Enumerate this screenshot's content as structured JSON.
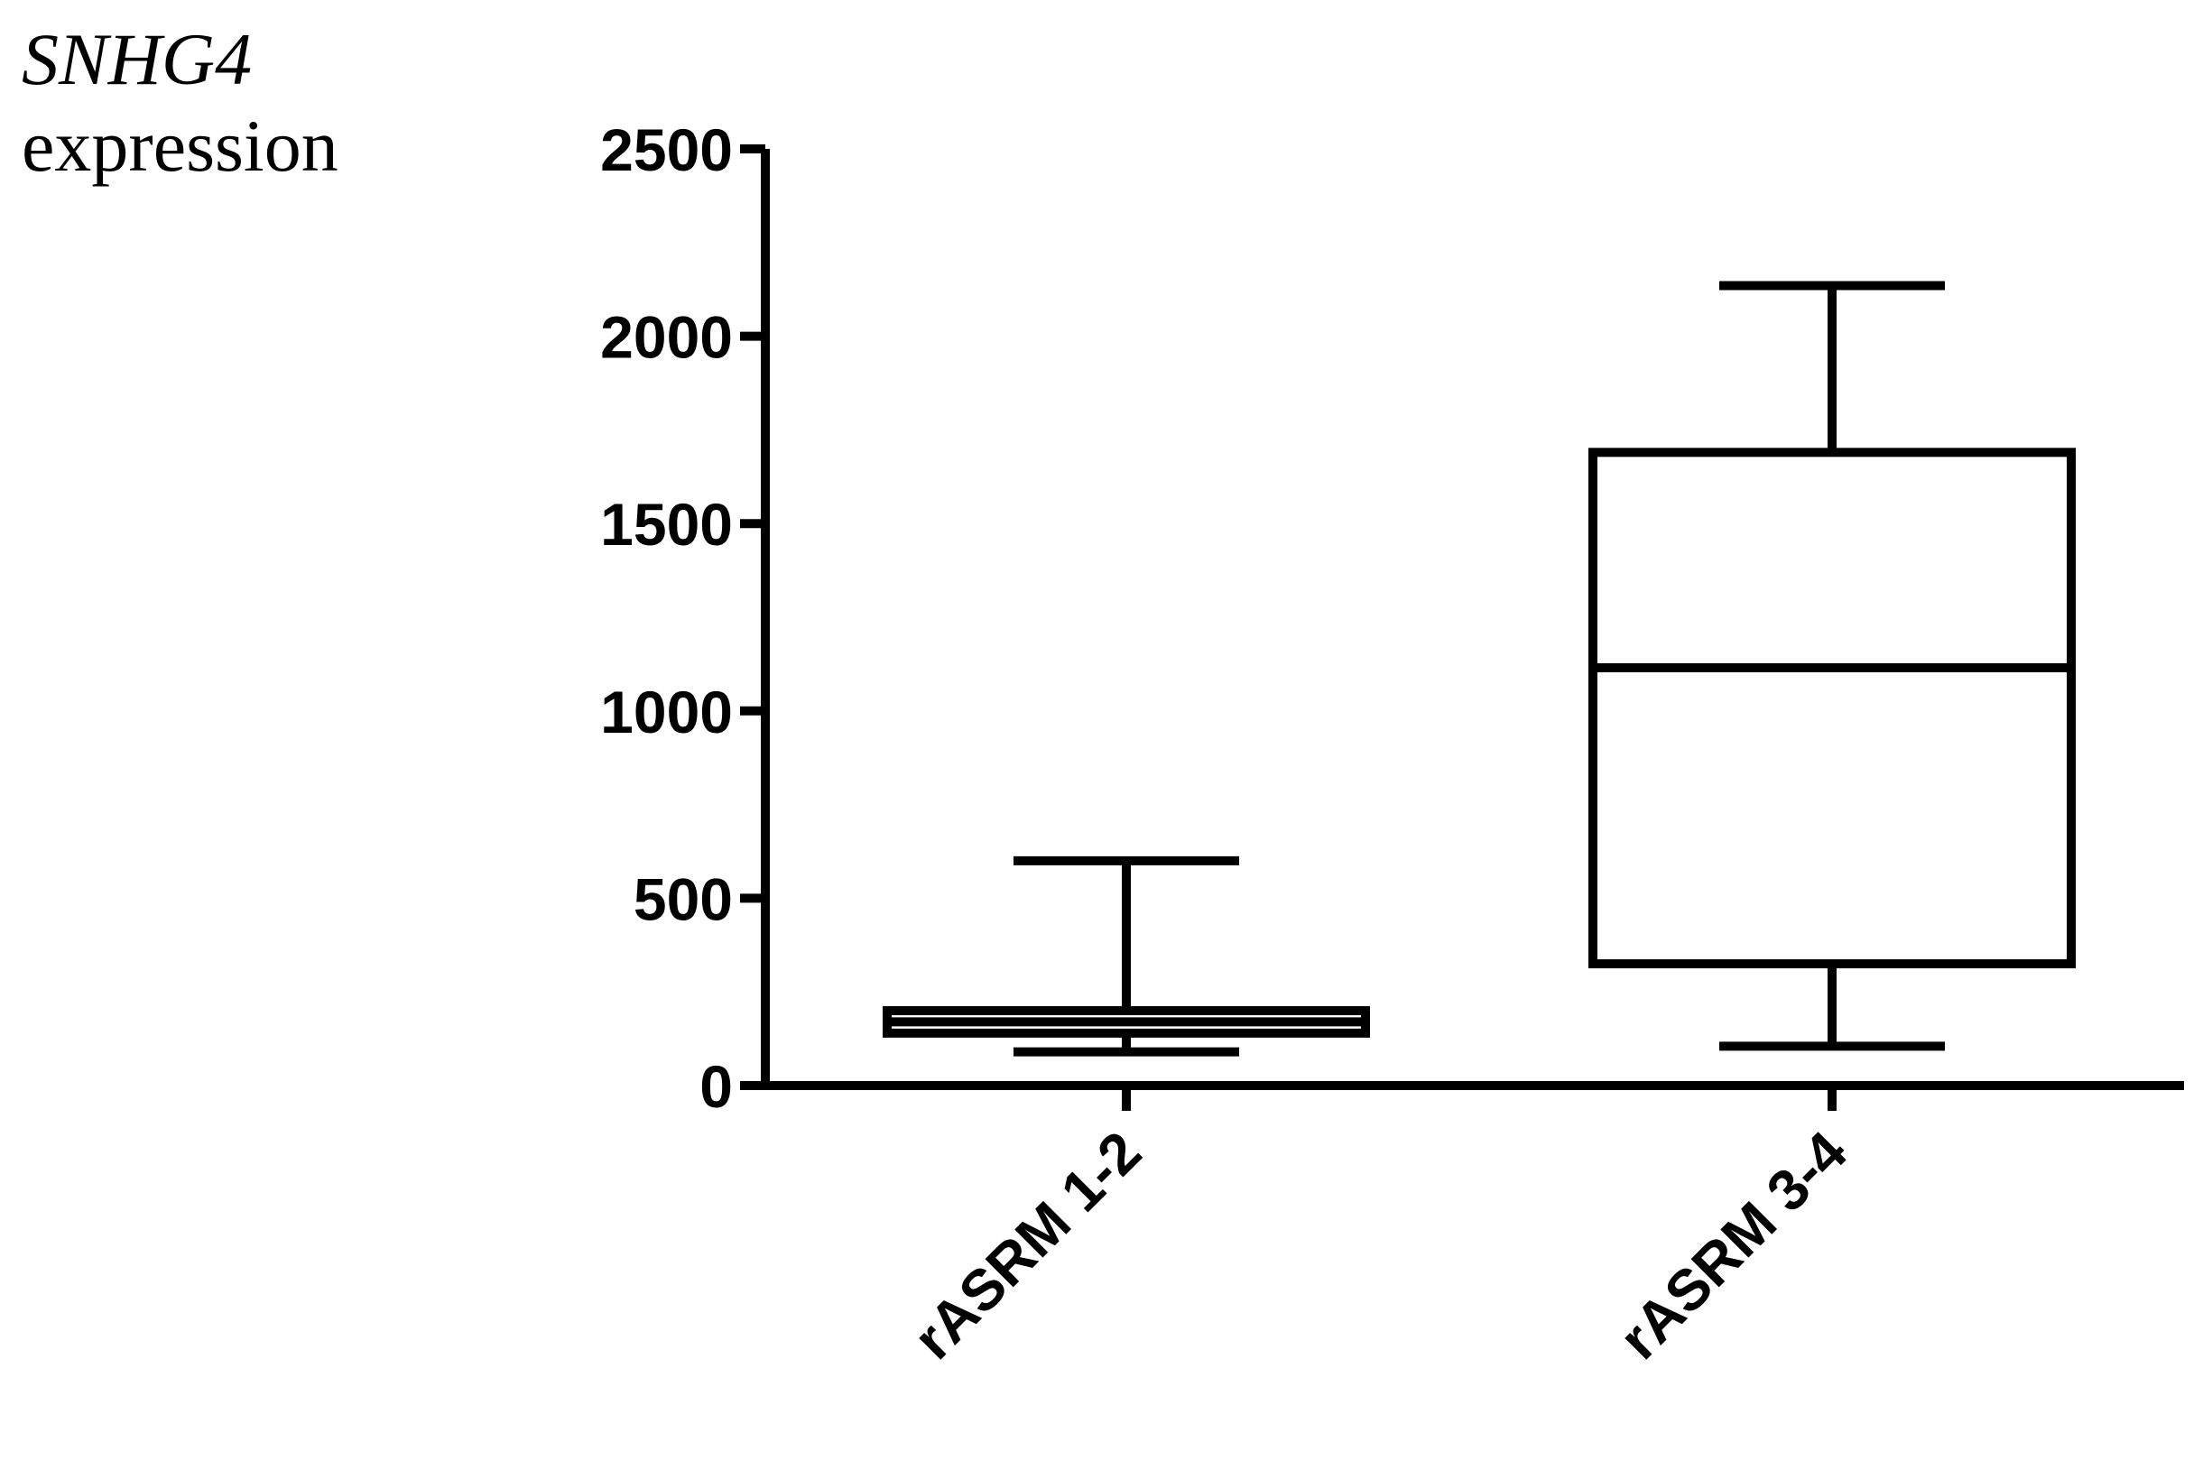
{
  "chart_data": {
    "type": "box",
    "ylabel": {
      "gene": "SNHG4",
      "rest": "expression"
    },
    "ylim": [
      0,
      2500
    ],
    "yticks": [
      0,
      500,
      1000,
      1500,
      2000,
      2500
    ],
    "categories": [
      "rASRM 1-2",
      "rASRM 3-4"
    ],
    "boxes": [
      {
        "category": "rASRM 1-2",
        "min": 90,
        "q1": 140,
        "median": 170,
        "q3": 200,
        "max": 600
      },
      {
        "category": "rASRM 3-4",
        "min": 105,
        "q1": 325,
        "median": 1115,
        "q3": 1690,
        "max": 2135
      }
    ],
    "grid": false,
    "colors": {
      "stroke": "#000000",
      "background": "#ffffff"
    }
  }
}
